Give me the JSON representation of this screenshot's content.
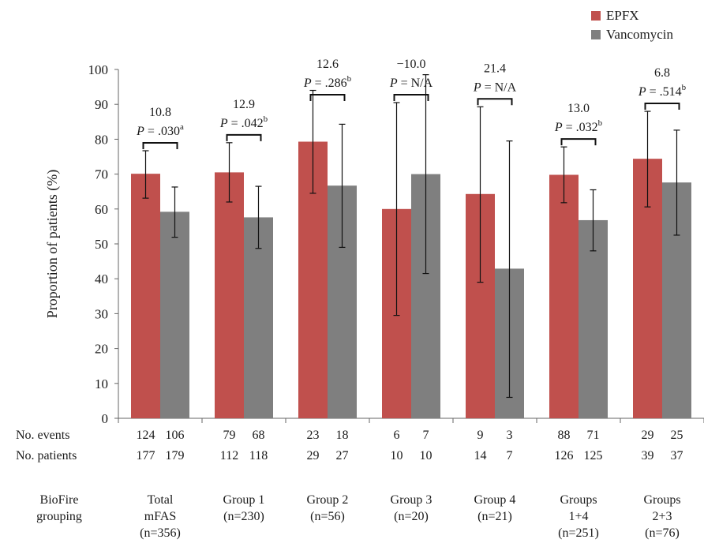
{
  "chart_data": {
    "type": "bar",
    "ylabel": "Proportion of patients (%)",
    "ylim": [
      0,
      100
    ],
    "yticks": [
      0,
      10,
      20,
      30,
      40,
      50,
      60,
      70,
      80,
      90,
      100
    ],
    "grid": false,
    "legend_position": "top-right",
    "series": [
      {
        "name": "EPFX",
        "color": "#c0504d",
        "values": [
          70.1,
          70.5,
          79.3,
          60.0,
          64.3,
          69.8,
          74.4
        ],
        "err_low": [
          63.1,
          62.0,
          64.5,
          29.5,
          39.0,
          61.8,
          60.6
        ],
        "err_high": [
          76.7,
          79.0,
          94.0,
          90.5,
          89.3,
          77.8,
          88.0
        ]
      },
      {
        "name": "Vancomycin",
        "color": "#7f7f7f",
        "values": [
          59.2,
          57.6,
          66.7,
          70.0,
          42.9,
          56.8,
          67.6
        ],
        "err_low": [
          51.9,
          48.7,
          49.0,
          41.5,
          6.0,
          48.0,
          52.5
        ],
        "err_high": [
          66.3,
          66.5,
          84.3,
          98.5,
          79.5,
          65.5,
          82.6
        ]
      }
    ],
    "groups": [
      {
        "label": [
          "Total",
          "mFAS",
          "(n=356)"
        ],
        "diff": "10.8",
        "p": ".030",
        "sup": "a",
        "events": [
          "124",
          "106"
        ],
        "patients": [
          "177",
          "179"
        ]
      },
      {
        "label": [
          "Group 1",
          "(n=230)"
        ],
        "diff": "12.9",
        "p": ".042",
        "sup": "b",
        "events": [
          "79",
          "68"
        ],
        "patients": [
          "112",
          "118"
        ]
      },
      {
        "label": [
          "Group 2",
          "(n=56)"
        ],
        "diff": "12.6",
        "p": ".286",
        "sup": "b",
        "events": [
          "23",
          "18"
        ],
        "patients": [
          "29",
          "27"
        ]
      },
      {
        "label": [
          "Group 3",
          "(n=20)"
        ],
        "diff": "−10.0",
        "p": "N/A",
        "sup": "",
        "events": [
          "6",
          "7"
        ],
        "patients": [
          "10",
          "10"
        ]
      },
      {
        "label": [
          "Group 4",
          "(n=21)"
        ],
        "diff": "21.4",
        "p": "N/A",
        "sup": "",
        "events": [
          "9",
          "3"
        ],
        "patients": [
          "14",
          "7"
        ]
      },
      {
        "label": [
          "Groups",
          "1+4",
          "(n=251)"
        ],
        "diff": "13.0",
        "p": ".032",
        "sup": "b",
        "events": [
          "88",
          "71"
        ],
        "patients": [
          "126",
          "125"
        ]
      },
      {
        "label": [
          "Groups",
          "2+3",
          "(n=76)"
        ],
        "diff": "6.8",
        "p": ".514",
        "sup": "b",
        "events": [
          "29",
          "25"
        ],
        "patients": [
          "39",
          "37"
        ]
      }
    ],
    "row_labels": {
      "events": "No. events",
      "patients": "No. patients",
      "grouping": [
        "BioFire",
        "grouping"
      ]
    },
    "p_prefix": "P = "
  }
}
